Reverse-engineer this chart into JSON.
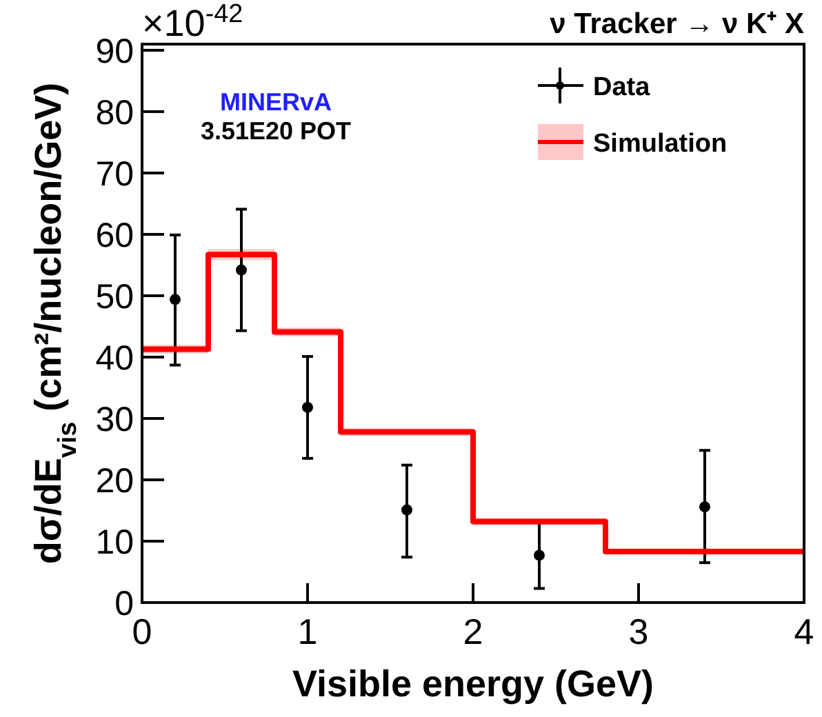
{
  "chart_data": {
    "type": "scatter",
    "title": "ν Tracker → ν K⁺ X",
    "xlabel": "Visible energy (GeV)",
    "ylabel": "dσ/dE$_{vis}$ (cm²/nucleon/GeV)",
    "annotations": [
      "×10$^{-42}$",
      "MINERvA",
      "3.51E20 POT"
    ],
    "xlim": [
      0,
      4
    ],
    "xticks": [
      0,
      1,
      2,
      3,
      4
    ],
    "ylim": [
      0,
      91
    ],
    "yticks": [
      0,
      10,
      20,
      30,
      40,
      50,
      60,
      70,
      80,
      90
    ],
    "grid": false,
    "legend": "top right",
    "series": [
      {
        "name": "Data",
        "color": "#000000",
        "marker": "circle",
        "x": [
          0.2,
          0.6,
          1.0,
          1.6,
          2.4,
          3.4
        ],
        "values": [
          49.4,
          54.2,
          31.8,
          15.1,
          7.7,
          15.6
        ],
        "errors": [
          [
            38.7,
            59.9
          ],
          [
            44.3,
            64.1
          ],
          [
            23.5,
            40.1
          ],
          [
            7.4,
            22.4
          ],
          [
            2.3,
            13.3
          ],
          [
            6.5,
            24.8
          ]
        ]
      },
      {
        "name": "Simulation",
        "type": "step",
        "color": "#ff0000",
        "marker": "none",
        "x": [
          0,
          0.4,
          0.8,
          1.2,
          2.0,
          2.8,
          4
        ],
        "values": [
          41.3,
          56.7,
          44.1,
          27.8,
          13.2,
          8.3,
          8.3
        ],
        "lower": [
          40.6,
          55.8,
          43.4,
          27.2,
          12.6,
          7.8,
          7.8
        ],
        "upper": [
          42.0,
          57.6,
          44.8,
          28.4,
          13.8,
          8.8,
          8.8
        ]
      }
    ]
  }
}
